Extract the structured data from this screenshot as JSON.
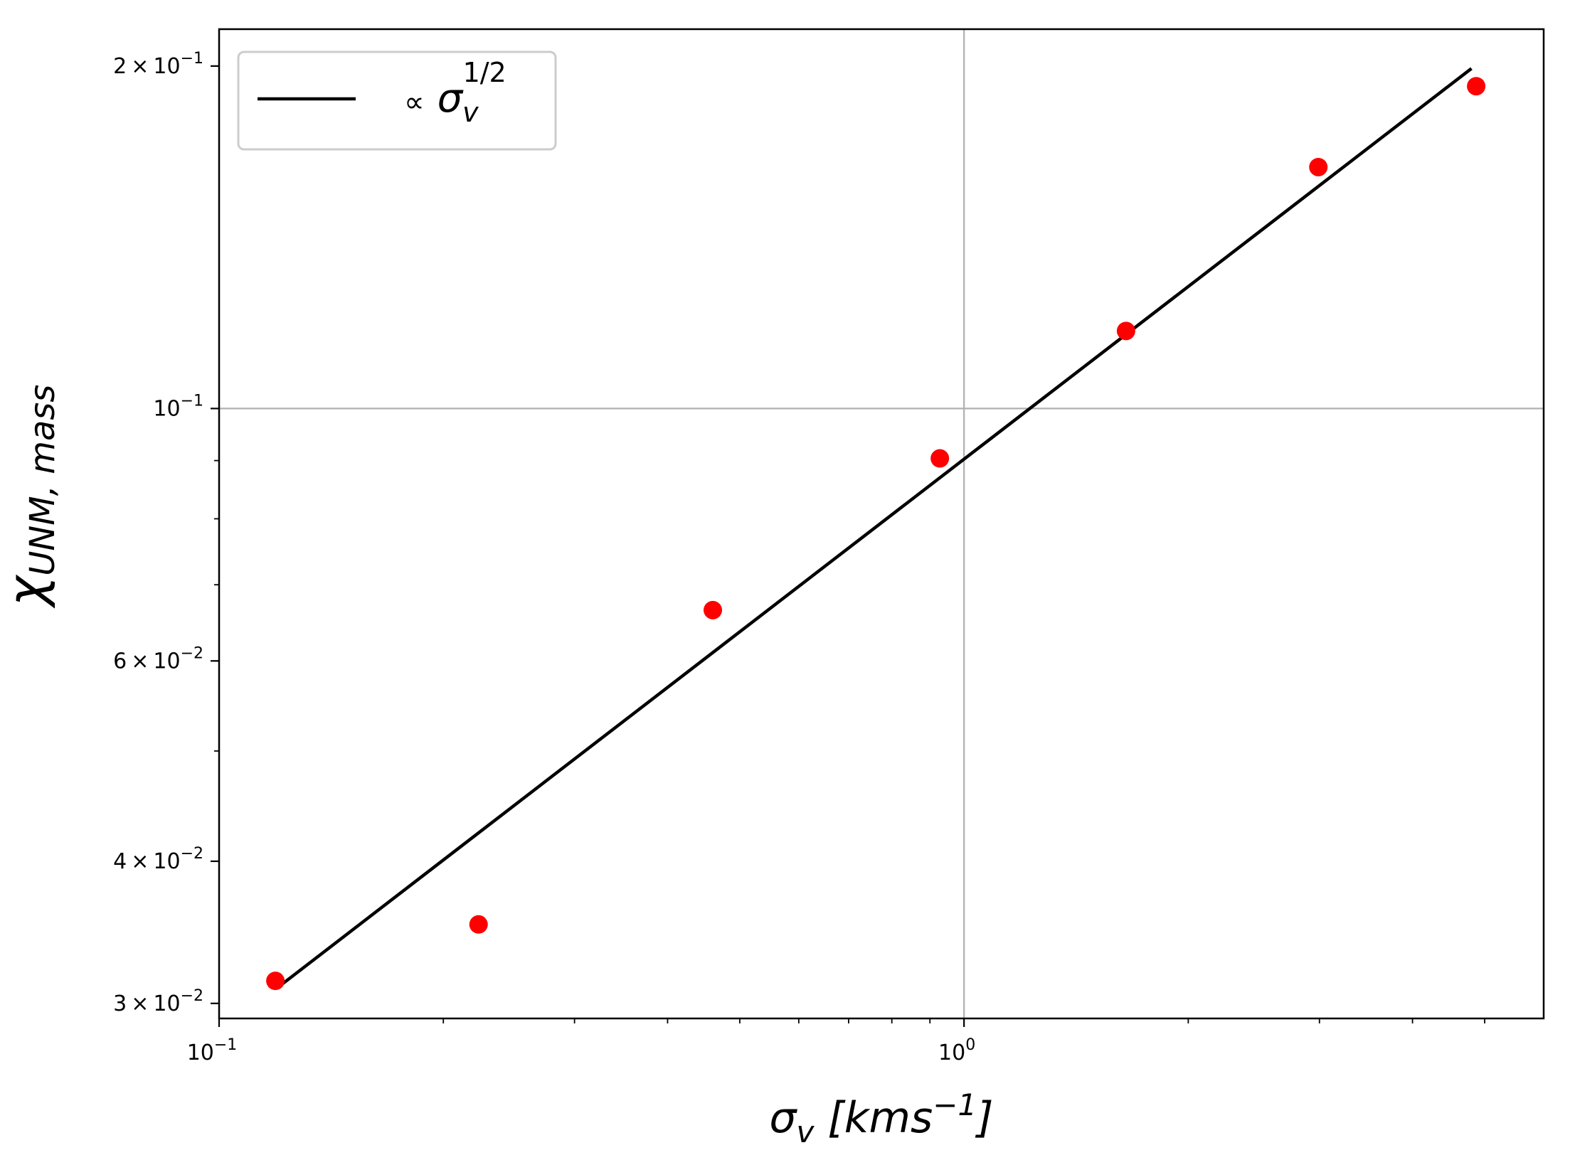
{
  "chart_data": {
    "type": "scatter",
    "xscale": "log",
    "yscale": "log",
    "xlim": [
      0.1,
      6.0
    ],
    "ylim": [
      0.0291,
      0.2155
    ],
    "grid": true,
    "grid_lines": "major",
    "xlabel": "σv [kms−1]",
    "ylabel": "χUNM, mass",
    "x_ticks": [
      {
        "value": 0.1,
        "base": "10",
        "exp": "−1"
      },
      {
        "value": 1.0,
        "base": "10",
        "exp": "0"
      }
    ],
    "y_ticks": [
      {
        "value": 0.03,
        "coef": "3",
        "exp": "−2"
      },
      {
        "value": 0.04,
        "coef": "4",
        "exp": "−2"
      },
      {
        "value": 0.06,
        "coef": "6",
        "exp": "−2"
      },
      {
        "value": 0.1,
        "coef": "",
        "exp": "−1"
      },
      {
        "value": 0.2,
        "coef": "2",
        "exp": "−1"
      }
    ],
    "series": [
      {
        "kind": "scatter",
        "color": "#ff0000",
        "points": [
          {
            "x": 0.119,
            "y": 0.0314
          },
          {
            "x": 0.223,
            "y": 0.0352
          },
          {
            "x": 0.46,
            "y": 0.0665
          },
          {
            "x": 0.928,
            "y": 0.0904
          },
          {
            "x": 1.65,
            "y": 0.117
          },
          {
            "x": 2.99,
            "y": 0.163
          },
          {
            "x": 4.87,
            "y": 0.192
          }
        ]
      },
      {
        "kind": "line",
        "color": "#000000",
        "points": [
          {
            "x": 0.12,
            "y": 0.031
          },
          {
            "x": 4.8,
            "y": 0.199
          }
        ]
      }
    ],
    "legend": {
      "position": "top-left",
      "entries": [
        {
          "prefix": "∝",
          "symbol": "σ",
          "subscript": "v",
          "superscript": "1/2",
          "color": "#000000"
        }
      ]
    }
  }
}
